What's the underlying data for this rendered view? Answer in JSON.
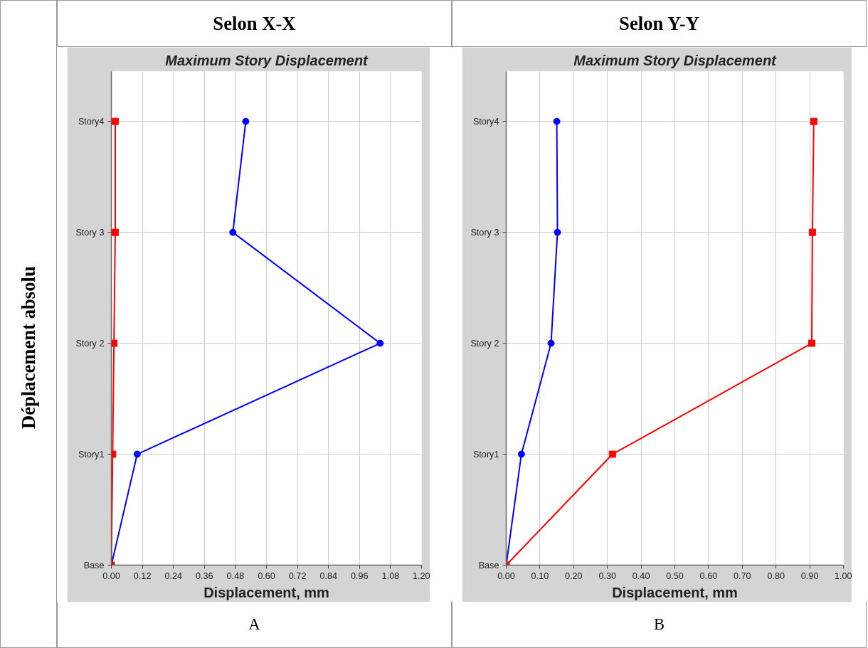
{
  "chart_data": [
    {
      "type": "line",
      "orientation": "horizontal",
      "title": "Maximum Story Displacement",
      "xlabel": "Displacement, mm",
      "ylabel": "Déplacement absolu",
      "annotations": [
        "Selon X-X",
        "A"
      ],
      "categories": [
        "Story4",
        "Story 3",
        "Story 2",
        "Story1",
        "Base"
      ],
      "xlim": [
        0,
        1.2
      ],
      "xticks": [
        {
          "value": 0,
          "label": "0.00"
        },
        {
          "value": 0.12,
          "label": "0.12"
        },
        {
          "value": 0.24,
          "label": "0.24"
        },
        {
          "value": 0.36,
          "label": "0.36"
        },
        {
          "value": 0.48,
          "label": "0.48"
        },
        {
          "value": 0.6,
          "label": "0.60"
        },
        {
          "value": 0.72,
          "label": "0.72"
        },
        {
          "value": 0.84,
          "label": "0.84"
        },
        {
          "value": 0.96,
          "label": "0.96"
        },
        {
          "value": 1.08,
          "label": "1.08"
        },
        {
          "value": 1.2,
          "label": "1.20"
        }
      ],
      "grid": true,
      "series": [
        {
          "color": "#0000ff",
          "marker": "circle",
          "values": [
            0.52,
            0.47,
            1.04,
            0.1,
            0
          ]
        },
        {
          "color": "#ff0000",
          "marker": "square",
          "values": [
            0.015,
            0.015,
            0.01,
            0.005,
            0
          ]
        }
      ]
    },
    {
      "type": "line",
      "orientation": "horizontal",
      "title": "Maximum Story Displacement",
      "xlabel": "Displacement, mm",
      "annotations": [
        "Selon Y-Y",
        "B"
      ],
      "categories": [
        "Story4",
        "Story 3",
        "Story 2",
        "Story1",
        "Base"
      ],
      "xlim": [
        0,
        1.0
      ],
      "xticks": [
        {
          "value": 0,
          "label": "0.00"
        },
        {
          "value": 0.1,
          "label": "0.10"
        },
        {
          "value": 0.2,
          "label": "0.20"
        },
        {
          "value": 0.3,
          "label": "0.30"
        },
        {
          "value": 0.4,
          "label": "0.40"
        },
        {
          "value": 0.5,
          "label": "0.50"
        },
        {
          "value": 0.6,
          "label": "0.60"
        },
        {
          "value": 0.7,
          "label": "0.70"
        },
        {
          "value": 0.8,
          "label": "0.80"
        },
        {
          "value": 0.9,
          "label": "0.90"
        },
        {
          "value": 1.0,
          "label": "1.00"
        }
      ],
      "grid": true,
      "series": [
        {
          "color": "#0000ff",
          "marker": "circle",
          "values": [
            0.15,
            0.152,
            0.133,
            0.045,
            0
          ]
        },
        {
          "color": "#ff0000",
          "marker": "square",
          "values": [
            0.912,
            0.908,
            0.906,
            0.315,
            0
          ]
        }
      ]
    }
  ]
}
